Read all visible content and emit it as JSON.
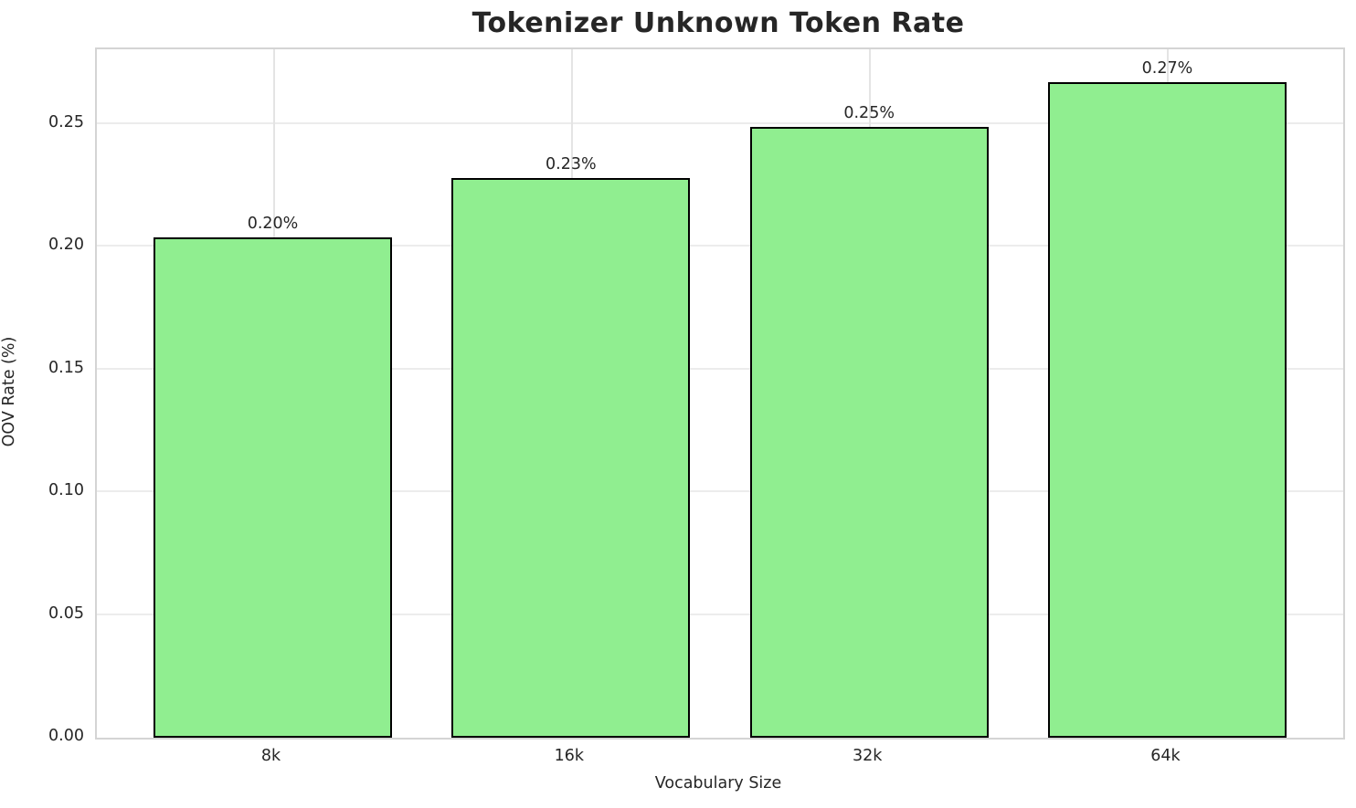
{
  "chart_data": {
    "type": "bar",
    "title": "Tokenizer Unknown Token Rate",
    "xlabel": "Vocabulary Size",
    "ylabel": "OOV Rate (%)",
    "categories": [
      "8k",
      "16k",
      "32k",
      "64k"
    ],
    "values": [
      0.204,
      0.228,
      0.249,
      0.267
    ],
    "bar_labels": [
      "0.20%",
      "0.23%",
      "0.25%",
      "0.27%"
    ],
    "ytick_values": [
      0.0,
      0.05,
      0.1,
      0.15,
      0.2,
      0.25
    ],
    "ytick_labels": [
      "0.00",
      "0.05",
      "0.10",
      "0.15",
      "0.20",
      "0.25"
    ],
    "ylim": [
      0,
      0.2805
    ],
    "xlim_units": [
      -0.59,
      3.59
    ],
    "bar_width_units": 0.8,
    "grid": true,
    "legend": "none",
    "bar_color": "#90EE90",
    "bar_edge_color": "#000000",
    "grid_color": "#ececec",
    "spine_color": "#d4d4d4",
    "text_color": "#262626",
    "background_color": "#ffffff"
  }
}
